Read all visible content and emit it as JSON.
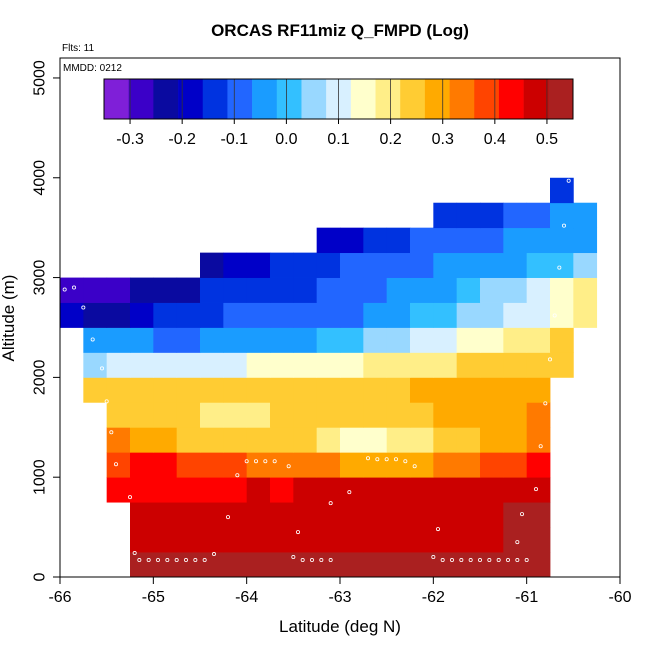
{
  "chart_data": {
    "type": "heatmap",
    "title": "ORCAS RF11miz Q_FMPD (Log)",
    "notes": {
      "flights": "Flts: 11",
      "date": "MMDD: 0212"
    },
    "xlabel": "Latitude (deg N)",
    "ylabel": "Altitude (m)",
    "xlim": [
      -66,
      -60
    ],
    "ylim": [
      0,
      5200
    ],
    "x_ticks": [
      -66,
      -65,
      -64,
      -63,
      -62,
      -61,
      -60
    ],
    "y_ticks": [
      0,
      1000,
      2000,
      3000,
      4000,
      5000
    ],
    "cell_size": {
      "lat": 0.25,
      "alt": 250
    },
    "colorbar": {
      "ticks": [
        -0.3,
        -0.2,
        -0.1,
        0.0,
        0.1,
        0.2,
        0.3,
        0.4,
        0.5
      ],
      "range": [
        -0.35,
        0.55
      ],
      "palette": [
        "#7f1fd8",
        "#3b00c8",
        "#0a0aa0",
        "#0000c8",
        "#0033e0",
        "#2266ff",
        "#1a9cff",
        "#33c0ff",
        "#99d8ff",
        "#d8f0ff",
        "#ffffcc",
        "#ffee88",
        "#ffcc33",
        "#ffaa00",
        "#ff7a00",
        "#ff4400",
        "#ff0000",
        "#cc0000",
        "#aa2020"
      ]
    },
    "rows": [
      {
        "alt": 0,
        "start": -65.25,
        "values": [
          0.53,
          0.53,
          0.53,
          0.53,
          0.53,
          0.53,
          0.53,
          0.53,
          0.53,
          0.53,
          0.53,
          0.53,
          0.53,
          0.53,
          0.53,
          0.53,
          0.53,
          0.53
        ]
      },
      {
        "alt": 250,
        "start": -65.25,
        "values": [
          0.5,
          0.5,
          0.5,
          0.5,
          0.5,
          0.5,
          0.5,
          0.5,
          0.5,
          0.5,
          0.5,
          0.5,
          0.5,
          0.5,
          0.5,
          0.5,
          0.51,
          0.52
        ]
      },
      {
        "alt": 500,
        "start": -65.25,
        "values": [
          0.48,
          0.48,
          0.48,
          0.49,
          0.49,
          0.48,
          0.48,
          0.48,
          0.49,
          0.49,
          0.49,
          0.49,
          0.49,
          0.49,
          0.49,
          0.5,
          0.51,
          0.51
        ]
      },
      {
        "alt": 750,
        "start": -65.5,
        "values": [
          0.44,
          0.45,
          0.45,
          0.45,
          0.45,
          0.45,
          0.46,
          0.45,
          0.46,
          0.46,
          0.46,
          0.46,
          0.46,
          0.46,
          0.46,
          0.47,
          0.48,
          0.5,
          0.5
        ]
      },
      {
        "alt": 1000,
        "start": -65.5,
        "values": [
          0.4,
          0.41,
          0.41,
          0.4,
          0.39,
          0.37,
          0.36,
          0.34,
          0.33,
          0.32,
          0.31,
          0.3,
          0.3,
          0.31,
          0.33,
          0.35,
          0.37,
          0.39,
          0.44
        ]
      },
      {
        "alt": 1250,
        "start": -65.5,
        "values": [
          0.33,
          0.31,
          0.28,
          0.25,
          0.24,
          0.23,
          0.24,
          0.25,
          0.22,
          0.19,
          0.16,
          0.15,
          0.18,
          0.2,
          0.23,
          0.26,
          0.29,
          0.31,
          0.35
        ]
      },
      {
        "alt": 1500,
        "start": -65.5,
        "values": [
          0.26,
          0.25,
          0.24,
          0.23,
          0.21,
          0.2,
          0.2,
          0.22,
          0.24,
          0.23,
          0.22,
          0.23,
          0.25,
          0.26,
          0.27,
          0.28,
          0.29,
          0.3,
          0.32
        ]
      },
      {
        "alt": 1750,
        "start": -65.75,
        "values": [
          0.23,
          0.23,
          0.23,
          0.23,
          0.23,
          0.23,
          0.23,
          0.24,
          0.24,
          0.25,
          0.25,
          0.25,
          0.26,
          0.26,
          0.27,
          0.27,
          0.28,
          0.28,
          0.28,
          0.28
        ]
      },
      {
        "alt": 2000,
        "start": -65.75,
        "values": [
          0.07,
          0.08,
          0.08,
          0.09,
          0.1,
          0.11,
          0.12,
          0.13,
          0.14,
          0.15,
          0.16,
          0.17,
          0.18,
          0.19,
          0.2,
          0.21,
          0.22,
          0.23,
          0.24,
          0.25,
          0.26
        ]
      },
      {
        "alt": 2250,
        "start": -65.75,
        "values": [
          -0.05,
          -0.05,
          -0.06,
          -0.07,
          -0.07,
          -0.06,
          -0.05,
          -0.04,
          -0.03,
          -0.02,
          0.0,
          0.02,
          0.04,
          0.06,
          0.08,
          0.11,
          0.14,
          0.16,
          0.18,
          0.2,
          0.23
        ]
      },
      {
        "alt": 2500,
        "start": -66.0,
        "values": [
          -0.2,
          -0.21,
          -0.21,
          -0.2,
          -0.16,
          -0.14,
          -0.12,
          -0.11,
          -0.1,
          -0.1,
          -0.09,
          -0.08,
          -0.07,
          -0.05,
          -0.02,
          0.0,
          0.02,
          0.05,
          0.07,
          0.09,
          0.12,
          0.15,
          0.2
        ]
      },
      {
        "alt": 2750,
        "start": -66.0,
        "values": [
          -0.3,
          -0.28,
          -0.26,
          -0.24,
          -0.23,
          -0.22,
          -0.16,
          -0.15,
          -0.14,
          -0.13,
          -0.12,
          -0.11,
          -0.1,
          -0.08,
          -0.06,
          -0.04,
          -0.02,
          0.0,
          0.03,
          0.06,
          0.1,
          0.16,
          0.2
        ]
      },
      {
        "alt": 3000,
        "start": -64.5,
        "values": [
          -0.22,
          -0.2,
          -0.17,
          -0.15,
          -0.14,
          -0.12,
          -0.1,
          -0.09,
          -0.08,
          -0.07,
          -0.06,
          -0.05,
          -0.04,
          -0.03,
          -0.01,
          0.02,
          0.05
        ]
      },
      {
        "alt": 3250,
        "start": -63.25,
        "values": [
          -0.2,
          -0.17,
          -0.15,
          -0.13,
          -0.11,
          -0.1,
          -0.09,
          -0.08,
          -0.06,
          -0.05,
          -0.04,
          -0.02
        ]
      },
      {
        "alt": 3500,
        "start": -62.0,
        "values": [
          -0.16,
          -0.14,
          -0.13,
          -0.11,
          -0.09,
          -0.06,
          -0.03
        ]
      },
      {
        "alt": 3750,
        "start": -60.75,
        "values": [
          -0.13
        ]
      }
    ],
    "points": {
      "lat": [
        -65.15,
        -65.05,
        -64.95,
        -64.85,
        -64.75,
        -64.65,
        -64.55,
        -64.45,
        -64.35,
        -63.5,
        -63.4,
        -63.3,
        -63.2,
        -63.1,
        -62.0,
        -61.9,
        -61.8,
        -61.7,
        -61.6,
        -61.5,
        -61.4,
        -61.3,
        -61.2,
        -61.1,
        -61.0,
        -65.2,
        -65.3,
        -65.25,
        -65.4,
        -65.45,
        -65.5,
        -65.55,
        -65.65,
        -65.75,
        -65.85,
        -65.95,
        -64.2,
        -64.1,
        -64.0,
        -63.9,
        -63.8,
        -63.7,
        -63.55,
        -63.45,
        -63.1,
        -62.9,
        -62.7,
        -62.6,
        -62.5,
        -62.4,
        -62.3,
        -62.2,
        -61.95,
        -61.1,
        -61.05,
        -60.9,
        -60.85,
        -60.8,
        -60.75,
        -60.7,
        -60.65,
        -60.6,
        -60.55
      ],
      "alt": [
        170,
        170,
        170,
        170,
        170,
        170,
        170,
        170,
        230,
        200,
        170,
        170,
        170,
        170,
        200,
        170,
        170,
        170,
        170,
        170,
        170,
        170,
        170,
        170,
        170,
        240,
        500,
        800,
        1130,
        1450,
        1760,
        2090,
        2380,
        2700,
        2900,
        2880,
        600,
        1020,
        1160,
        1160,
        1160,
        1160,
        1110,
        450,
        740,
        850,
        1190,
        1180,
        1180,
        1180,
        1160,
        1110,
        480,
        350,
        630,
        880,
        1310,
        1740,
        2180,
        2620,
        3100,
        3520,
        3970
      ]
    }
  }
}
